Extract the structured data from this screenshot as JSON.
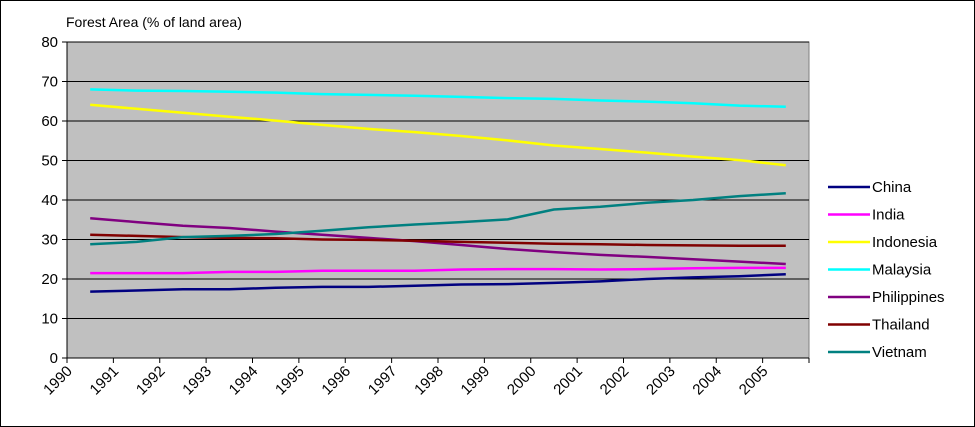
{
  "chart_data": {
    "type": "line",
    "title": "",
    "ylabel": "Forest Area (% of land area)",
    "xlabel": "",
    "ylim": [
      0,
      80
    ],
    "yticks": [
      0,
      10,
      20,
      30,
      40,
      50,
      60,
      70,
      80
    ],
    "grid": true,
    "legend_position": "right",
    "plot_background": "#c0c0c0",
    "categories": [
      "1990",
      "1991",
      "1992",
      "1993",
      "1994",
      "1995",
      "1996",
      "1997",
      "1998",
      "1999",
      "2000",
      "2001",
      "2002",
      "2003",
      "2004",
      "2005"
    ],
    "series": [
      {
        "name": "China",
        "color": "#000080",
        "values": [
          16.8,
          17.1,
          17.4,
          17.4,
          17.8,
          18.0,
          18.0,
          18.3,
          18.6,
          18.7,
          19.0,
          19.4,
          20.0,
          20.4,
          20.7,
          21.2
        ]
      },
      {
        "name": "India",
        "color": "#ff00ff",
        "values": [
          21.5,
          21.5,
          21.5,
          21.8,
          21.8,
          22.1,
          22.1,
          22.1,
          22.4,
          22.5,
          22.5,
          22.4,
          22.5,
          22.7,
          22.8,
          22.8
        ]
      },
      {
        "name": "Indonesia",
        "color": "#ffff00",
        "values": [
          64.1,
          63.1,
          62.1,
          61.1,
          60.1,
          59.0,
          58.0,
          57.2,
          56.2,
          55.1,
          53.8,
          52.9,
          52.0,
          51.0,
          50.1,
          48.8
        ]
      },
      {
        "name": "Malaysia",
        "color": "#00ffff",
        "values": [
          68.0,
          67.7,
          67.6,
          67.4,
          67.2,
          66.8,
          66.6,
          66.4,
          66.1,
          65.8,
          65.6,
          65.2,
          64.9,
          64.5,
          63.9,
          63.6
        ]
      },
      {
        "name": "Philippines",
        "color": "#800080",
        "values": [
          35.4,
          34.4,
          33.5,
          32.9,
          32.0,
          31.2,
          30.4,
          29.6,
          28.6,
          27.6,
          26.8,
          26.1,
          25.6,
          25.0,
          24.4,
          23.8
        ]
      },
      {
        "name": "Thailand",
        "color": "#800000",
        "values": [
          31.2,
          30.9,
          30.6,
          30.4,
          30.3,
          30.0,
          29.9,
          29.7,
          29.4,
          29.2,
          28.9,
          28.8,
          28.6,
          28.5,
          28.4,
          28.4
        ]
      },
      {
        "name": "Vietnam",
        "color": "#008080",
        "values": [
          28.8,
          29.4,
          30.6,
          30.9,
          31.4,
          32.2,
          33.1,
          33.8,
          34.4,
          35.1,
          37.6,
          38.3,
          39.3,
          40.0,
          41.0,
          41.7
        ]
      }
    ]
  }
}
